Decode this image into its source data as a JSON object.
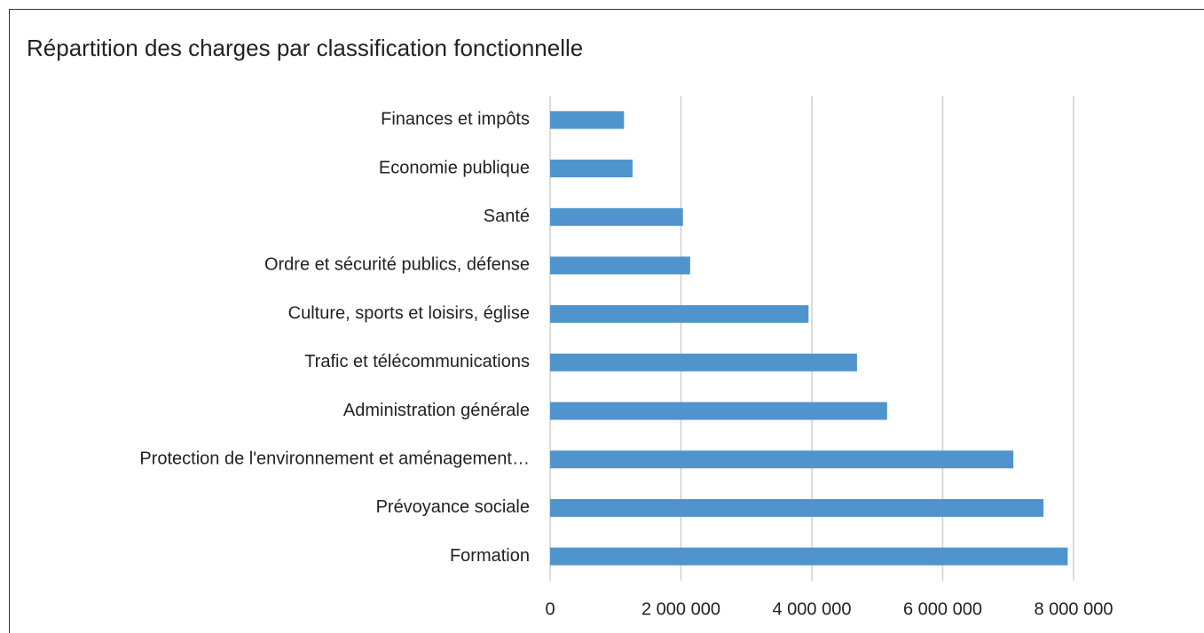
{
  "chart_data": {
    "type": "barh",
    "title": "Répartition des charges par classification fonctionnelle",
    "categories": [
      "Finances et impôts",
      "Economie publique",
      "Santé",
      "Ordre et sécurité publics, défense",
      "Culture, sports et loisirs, église",
      "Trafic et télécommunications",
      "Administration générale",
      "Protection de l'environnement et aménagement…",
      "Prévoyance sociale",
      "Formation"
    ],
    "values": [
      1130000,
      1260000,
      2030000,
      2140000,
      3950000,
      4690000,
      5150000,
      7080000,
      7540000,
      7910000
    ],
    "color": "#4f94cd",
    "xlim": [
      0,
      8000000
    ],
    "xticks": [
      0,
      {
        "value": 2000000,
        "label": "2 000 000"
      },
      {
        "value": 4000000,
        "label": "4 000 000"
      },
      {
        "value": 6000000,
        "label": "6 000 000"
      },
      {
        "value": 8000000,
        "label": "8 000 000"
      }
    ],
    "grid": true
  }
}
